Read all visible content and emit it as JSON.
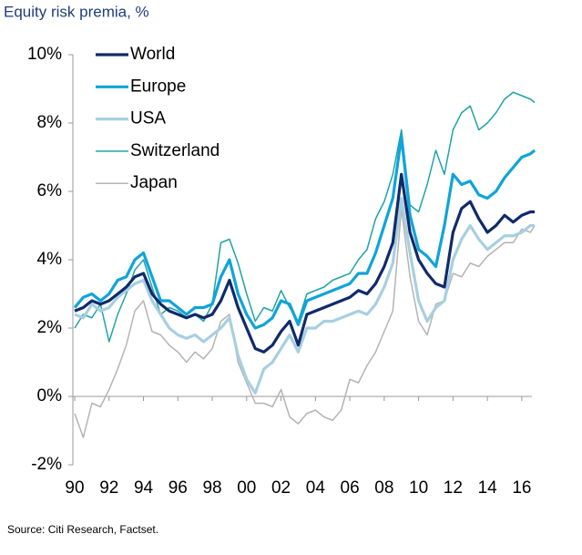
{
  "chart_data": {
    "type": "line",
    "title": "Equity risk premia, %",
    "source": "Source: Citi Research, Factset.",
    "xlim": [
      1990,
      2016.8
    ],
    "ylim": [
      -2,
      10
    ],
    "xticks": [
      {
        "value": 1990,
        "label": "90"
      },
      {
        "value": 1992,
        "label": "92"
      },
      {
        "value": 1994,
        "label": "94"
      },
      {
        "value": 1996,
        "label": "96"
      },
      {
        "value": 1998,
        "label": "98"
      },
      {
        "value": 2000,
        "label": "00"
      },
      {
        "value": 2002,
        "label": "02"
      },
      {
        "value": 2004,
        "label": "04"
      },
      {
        "value": 2006,
        "label": "06"
      },
      {
        "value": 2008,
        "label": "08"
      },
      {
        "value": 2010,
        "label": "10"
      },
      {
        "value": 2012,
        "label": "12"
      },
      {
        "value": 2014,
        "label": "14"
      },
      {
        "value": 2016,
        "label": "16"
      }
    ],
    "yticks": [
      {
        "value": -2,
        "label": "-2%"
      },
      {
        "value": 0,
        "label": "0%"
      },
      {
        "value": 2,
        "label": "2%"
      },
      {
        "value": 4,
        "label": "4%"
      },
      {
        "value": 6,
        "label": "6%"
      },
      {
        "value": 8,
        "label": "8%"
      },
      {
        "value": 10,
        "label": "10%"
      }
    ],
    "legend": "top-left",
    "x": [
      1990,
      1990.5,
      1991,
      1991.5,
      1992,
      1992.5,
      1993,
      1993.5,
      1994,
      1994.5,
      1995,
      1995.5,
      1996,
      1996.5,
      1997,
      1997.5,
      1998,
      1998.5,
      1999,
      1999.5,
      2000,
      2000.5,
      2001,
      2001.5,
      2002,
      2002.5,
      2003,
      2003.5,
      2004,
      2004.5,
      2005,
      2005.5,
      2006,
      2006.5,
      2007,
      2007.5,
      2008,
      2008.5,
      2009,
      2009.5,
      2010,
      2010.5,
      2011,
      2011.5,
      2012,
      2012.5,
      2013,
      2013.5,
      2014,
      2014.5,
      2015,
      2015.5,
      2016,
      2016.5,
      2016.75
    ],
    "series": [
      {
        "name": "World",
        "color": "#102a6b",
        "values": [
          2.5,
          2.6,
          2.8,
          2.7,
          2.8,
          3.0,
          3.2,
          3.5,
          3.6,
          3.0,
          2.7,
          2.5,
          2.4,
          2.3,
          2.4,
          2.3,
          2.4,
          2.8,
          3.4,
          2.6,
          2.0,
          1.4,
          1.3,
          1.5,
          1.9,
          2.2,
          1.5,
          2.4,
          2.5,
          2.6,
          2.7,
          2.8,
          2.9,
          3.1,
          3.0,
          3.3,
          3.8,
          4.5,
          6.5,
          4.8,
          4.0,
          3.6,
          3.3,
          3.2,
          4.8,
          5.5,
          5.7,
          5.2,
          4.8,
          5.0,
          5.3,
          5.1,
          5.3,
          5.4,
          5.4
        ]
      },
      {
        "name": "Europe",
        "color": "#0fa4da",
        "values": [
          2.6,
          2.9,
          3.0,
          2.8,
          3.0,
          3.4,
          3.5,
          4.0,
          4.2,
          3.5,
          2.8,
          2.8,
          2.6,
          2.4,
          2.6,
          2.6,
          2.7,
          3.5,
          4.0,
          3.0,
          2.4,
          2.0,
          2.1,
          2.3,
          2.8,
          2.7,
          2.1,
          2.8,
          2.9,
          3.0,
          3.1,
          3.2,
          3.3,
          3.6,
          3.6,
          4.2,
          5.0,
          5.8,
          7.6,
          5.3,
          4.3,
          4.1,
          3.8,
          5.0,
          6.5,
          6.2,
          6.3,
          5.9,
          5.8,
          6.0,
          6.4,
          6.7,
          7.0,
          7.1,
          7.2
        ]
      },
      {
        "name": "USA",
        "color": "#a8cfe0",
        "values": [
          2.4,
          2.3,
          2.7,
          2.5,
          2.6,
          2.9,
          3.1,
          3.3,
          3.4,
          2.8,
          2.4,
          2.0,
          1.8,
          1.7,
          1.8,
          1.6,
          1.8,
          2.0,
          2.3,
          1.2,
          0.5,
          0.1,
          0.8,
          1.0,
          1.4,
          1.8,
          1.3,
          2.0,
          2.0,
          2.2,
          2.2,
          2.3,
          2.4,
          2.5,
          2.4,
          2.7,
          3.2,
          3.9,
          5.8,
          4.2,
          2.8,
          2.2,
          2.6,
          2.8,
          4.0,
          4.6,
          5.0,
          4.6,
          4.3,
          4.5,
          4.7,
          4.7,
          4.8,
          5.0,
          5.0
        ]
      },
      {
        "name": "Switzerland",
        "color": "#20a3a6",
        "values": [
          2.0,
          2.4,
          2.3,
          2.7,
          1.6,
          2.4,
          3.0,
          3.7,
          4.0,
          3.2,
          2.4,
          2.6,
          2.5,
          2.3,
          2.4,
          2.2,
          2.7,
          4.5,
          4.6,
          3.9,
          3.0,
          2.2,
          2.6,
          2.5,
          3.1,
          2.6,
          2.2,
          3.0,
          3.1,
          3.2,
          3.4,
          3.5,
          3.6,
          4.0,
          4.3,
          5.2,
          5.7,
          6.5,
          7.8,
          5.6,
          5.4,
          6.2,
          7.2,
          6.5,
          7.8,
          8.3,
          8.5,
          7.8,
          8.0,
          8.3,
          8.7,
          8.9,
          8.8,
          8.7,
          8.6
        ]
      },
      {
        "name": "Japan",
        "color": "#b4b4b4",
        "values": [
          -0.5,
          -1.2,
          -0.2,
          -0.3,
          0.2,
          0.8,
          1.5,
          2.5,
          2.8,
          1.9,
          1.8,
          1.5,
          1.3,
          1.0,
          1.3,
          1.1,
          1.4,
          2.2,
          2.4,
          1.0,
          0.4,
          -0.2,
          -0.2,
          -0.3,
          0.2,
          -0.6,
          -0.8,
          -0.5,
          -0.4,
          -0.6,
          -0.7,
          -0.4,
          0.5,
          0.4,
          0.9,
          1.3,
          1.9,
          2.5,
          5.5,
          3.5,
          2.2,
          1.8,
          2.7,
          2.8,
          3.6,
          3.5,
          3.9,
          3.8,
          4.1,
          4.3,
          4.5,
          4.5,
          4.9,
          4.8,
          5.0
        ]
      }
    ]
  }
}
